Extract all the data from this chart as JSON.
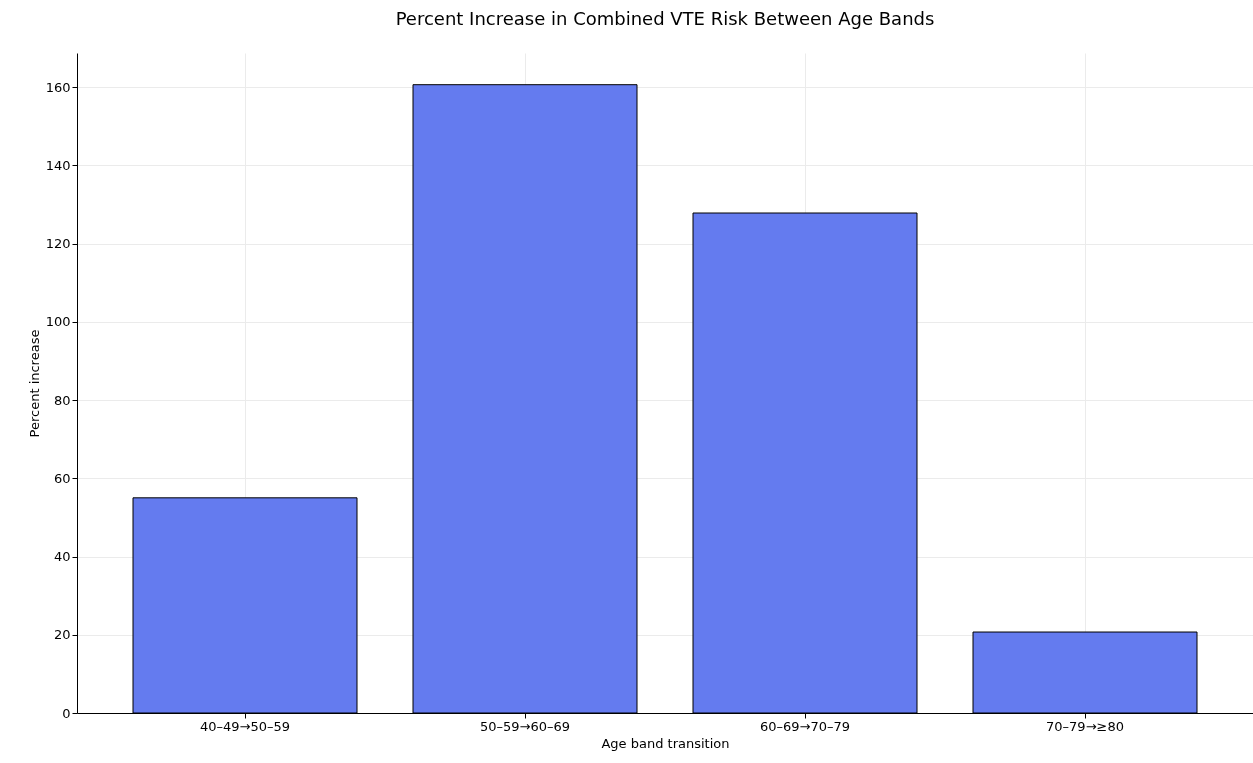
{
  "chart_data": {
    "type": "bar",
    "title": "Percent Increase in Combined VTE Risk Between Age Bands",
    "xlabel": "Age band transition",
    "ylabel": "Percent increase",
    "categories": [
      "40–49→50–59",
      "50–59→60–69",
      "60–69→70–79",
      "70–79→≥80"
    ],
    "values": [
      55,
      160.6,
      127.8,
      20.7
    ],
    "color": "#647bef",
    "ylim": [
      0,
      168.7
    ],
    "yticks": [
      0,
      20,
      40,
      60,
      80,
      100,
      120,
      140,
      160
    ],
    "grid": true
  }
}
